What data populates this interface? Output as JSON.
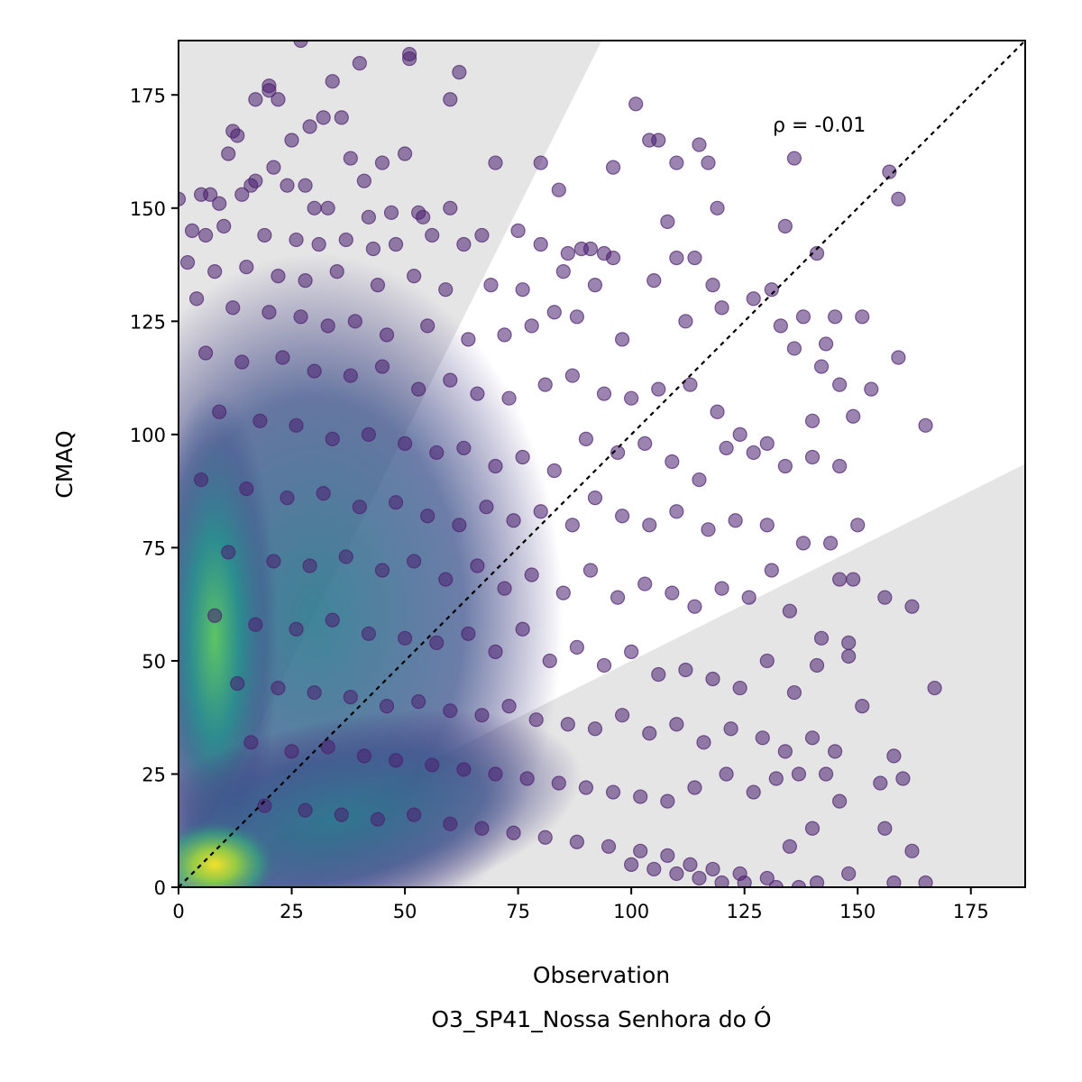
{
  "chart_data": {
    "type": "scatter",
    "xlabel": "Observation",
    "subtitle": "O3_SP41_Nossa Senhora do Ó",
    "ylabel": "CMAQ",
    "xlim": [
      0,
      187
    ],
    "ylim": [
      0,
      187
    ],
    "xticks": [
      0,
      25,
      50,
      75,
      100,
      125,
      150,
      175
    ],
    "yticks": [
      0,
      25,
      50,
      75,
      100,
      125,
      150,
      175
    ],
    "xtick_labels": [
      "0",
      "25",
      "50",
      "75",
      "100",
      "125",
      "150",
      "175"
    ],
    "ytick_labels": [
      "0",
      "25",
      "50",
      "75",
      "100",
      "125",
      "150",
      "175"
    ],
    "annotation": "ρ = -0.01",
    "reference_line": "y = x",
    "shaded_regions": "outside factor-of-2 band (y > 2x and y < x/2)",
    "point_color": "#4b1f6f",
    "density_colormap": [
      "#440154",
      "#3b528b",
      "#21918c",
      "#5ec962",
      "#fde725"
    ],
    "grid": false,
    "legend": "none",
    "points": [
      [
        27,
        187
      ],
      [
        40,
        182
      ],
      [
        51,
        184
      ],
      [
        51,
        183
      ],
      [
        62,
        180
      ],
      [
        34,
        178
      ],
      [
        20,
        177
      ],
      [
        20,
        176
      ],
      [
        22,
        174
      ],
      [
        17,
        174
      ],
      [
        60,
        174
      ],
      [
        101,
        173
      ],
      [
        32,
        170
      ],
      [
        36,
        170
      ],
      [
        12,
        167
      ],
      [
        13,
        166
      ],
      [
        29,
        168
      ],
      [
        25,
        165
      ],
      [
        104,
        165
      ],
      [
        106,
        165
      ],
      [
        115,
        164
      ],
      [
        11,
        162
      ],
      [
        50,
        162
      ],
      [
        45,
        160
      ],
      [
        38,
        161
      ],
      [
        21,
        159
      ],
      [
        70,
        160
      ],
      [
        80,
        160
      ],
      [
        110,
        160
      ],
      [
        117,
        160
      ],
      [
        136,
        161
      ],
      [
        96,
        159
      ],
      [
        157,
        158
      ],
      [
        159,
        152
      ],
      [
        17,
        156
      ],
      [
        16,
        155
      ],
      [
        41,
        156
      ],
      [
        24,
        155
      ],
      [
        28,
        155
      ],
      [
        84,
        154
      ],
      [
        0,
        152
      ],
      [
        5,
        153
      ],
      [
        7,
        153
      ],
      [
        9,
        151
      ],
      [
        14,
        153
      ],
      [
        30,
        150
      ],
      [
        33,
        150
      ],
      [
        42,
        148
      ],
      [
        47,
        149
      ],
      [
        53,
        149
      ],
      [
        60,
        150
      ],
      [
        54,
        148
      ],
      [
        119,
        150
      ],
      [
        108,
        147
      ],
      [
        134,
        146
      ],
      [
        3,
        145
      ],
      [
        6,
        144
      ],
      [
        10,
        146
      ],
      [
        19,
        144
      ],
      [
        26,
        143
      ],
      [
        31,
        142
      ],
      [
        37,
        143
      ],
      [
        43,
        141
      ],
      [
        48,
        142
      ],
      [
        56,
        144
      ],
      [
        63,
        142
      ],
      [
        67,
        144
      ],
      [
        75,
        145
      ],
      [
        80,
        142
      ],
      [
        86,
        140
      ],
      [
        89,
        141
      ],
      [
        91,
        141
      ],
      [
        94,
        140
      ],
      [
        96,
        139
      ],
      [
        110,
        139
      ],
      [
        114,
        139
      ],
      [
        141,
        140
      ],
      [
        145,
        126
      ],
      [
        2,
        138
      ],
      [
        8,
        136
      ],
      [
        15,
        137
      ],
      [
        22,
        135
      ],
      [
        28,
        134
      ],
      [
        35,
        136
      ],
      [
        44,
        133
      ],
      [
        52,
        135
      ],
      [
        59,
        132
      ],
      [
        69,
        133
      ],
      [
        76,
        132
      ],
      [
        85,
        136
      ],
      [
        92,
        133
      ],
      [
        105,
        134
      ],
      [
        118,
        133
      ],
      [
        131,
        132
      ],
      [
        138,
        126
      ],
      [
        143,
        120
      ],
      [
        151,
        126
      ],
      [
        159,
        117
      ],
      [
        4,
        130
      ],
      [
        12,
        128
      ],
      [
        20,
        127
      ],
      [
        27,
        126
      ],
      [
        33,
        124
      ],
      [
        39,
        125
      ],
      [
        46,
        122
      ],
      [
        55,
        124
      ],
      [
        64,
        121
      ],
      [
        72,
        122
      ],
      [
        78,
        124
      ],
      [
        83,
        127
      ],
      [
        88,
        126
      ],
      [
        98,
        121
      ],
      [
        112,
        125
      ],
      [
        120,
        128
      ],
      [
        127,
        130
      ],
      [
        133,
        124
      ],
      [
        136,
        119
      ],
      [
        142,
        115
      ],
      [
        146,
        111
      ],
      [
        6,
        118
      ],
      [
        14,
        116
      ],
      [
        23,
        117
      ],
      [
        30,
        114
      ],
      [
        38,
        113
      ],
      [
        45,
        115
      ],
      [
        53,
        110
      ],
      [
        60,
        112
      ],
      [
        66,
        109
      ],
      [
        73,
        108
      ],
      [
        81,
        111
      ],
      [
        87,
        113
      ],
      [
        94,
        109
      ],
      [
        100,
        108
      ],
      [
        106,
        110
      ],
      [
        113,
        111
      ],
      [
        119,
        105
      ],
      [
        124,
        100
      ],
      [
        130,
        98
      ],
      [
        140,
        103
      ],
      [
        149,
        104
      ],
      [
        153,
        110
      ],
      [
        9,
        105
      ],
      [
        18,
        103
      ],
      [
        26,
        102
      ],
      [
        34,
        99
      ],
      [
        42,
        100
      ],
      [
        50,
        98
      ],
      [
        57,
        96
      ],
      [
        63,
        97
      ],
      [
        70,
        93
      ],
      [
        76,
        95
      ],
      [
        83,
        92
      ],
      [
        90,
        99
      ],
      [
        97,
        96
      ],
      [
        103,
        98
      ],
      [
        109,
        94
      ],
      [
        115,
        90
      ],
      [
        121,
        97
      ],
      [
        127,
        96
      ],
      [
        134,
        93
      ],
      [
        140,
        95
      ],
      [
        146,
        93
      ],
      [
        150,
        80
      ],
      [
        165,
        102
      ],
      [
        5,
        90
      ],
      [
        15,
        88
      ],
      [
        24,
        86
      ],
      [
        32,
        87
      ],
      [
        40,
        84
      ],
      [
        48,
        85
      ],
      [
        55,
        82
      ],
      [
        62,
        80
      ],
      [
        68,
        84
      ],
      [
        74,
        81
      ],
      [
        80,
        83
      ],
      [
        87,
        80
      ],
      [
        92,
        86
      ],
      [
        98,
        82
      ],
      [
        104,
        80
      ],
      [
        110,
        83
      ],
      [
        117,
        79
      ],
      [
        123,
        81
      ],
      [
        130,
        80
      ],
      [
        138,
        76
      ],
      [
        144,
        76
      ],
      [
        146,
        68
      ],
      [
        149,
        68
      ],
      [
        11,
        74
      ],
      [
        21,
        72
      ],
      [
        29,
        71
      ],
      [
        37,
        73
      ],
      [
        45,
        70
      ],
      [
        52,
        72
      ],
      [
        59,
        68
      ],
      [
        66,
        71
      ],
      [
        72,
        66
      ],
      [
        78,
        69
      ],
      [
        85,
        65
      ],
      [
        91,
        70
      ],
      [
        97,
        64
      ],
      [
        103,
        67
      ],
      [
        109,
        65
      ],
      [
        114,
        62
      ],
      [
        120,
        66
      ],
      [
        126,
        64
      ],
      [
        131,
        70
      ],
      [
        135,
        61
      ],
      [
        142,
        55
      ],
      [
        148,
        54
      ],
      [
        156,
        64
      ],
      [
        162,
        62
      ],
      [
        8,
        60
      ],
      [
        17,
        58
      ],
      [
        26,
        57
      ],
      [
        34,
        59
      ],
      [
        42,
        56
      ],
      [
        50,
        55
      ],
      [
        57,
        54
      ],
      [
        64,
        56
      ],
      [
        70,
        52
      ],
      [
        76,
        57
      ],
      [
        82,
        50
      ],
      [
        88,
        53
      ],
      [
        94,
        49
      ],
      [
        100,
        52
      ],
      [
        106,
        47
      ],
      [
        112,
        48
      ],
      [
        118,
        46
      ],
      [
        124,
        44
      ],
      [
        130,
        50
      ],
      [
        136,
        43
      ],
      [
        141,
        49
      ],
      [
        148,
        51
      ],
      [
        167,
        44
      ],
      [
        13,
        45
      ],
      [
        22,
        44
      ],
      [
        30,
        43
      ],
      [
        38,
        42
      ],
      [
        46,
        40
      ],
      [
        53,
        41
      ],
      [
        60,
        39
      ],
      [
        67,
        38
      ],
      [
        73,
        40
      ],
      [
        79,
        37
      ],
      [
        86,
        36
      ],
      [
        92,
        35
      ],
      [
        98,
        38
      ],
      [
        104,
        34
      ],
      [
        110,
        36
      ],
      [
        116,
        32
      ],
      [
        122,
        35
      ],
      [
        129,
        33
      ],
      [
        134,
        30
      ],
      [
        140,
        33
      ],
      [
        145,
        30
      ],
      [
        151,
        40
      ],
      [
        158,
        29
      ],
      [
        16,
        32
      ],
      [
        25,
        30
      ],
      [
        33,
        31
      ],
      [
        41,
        29
      ],
      [
        48,
        28
      ],
      [
        56,
        27
      ],
      [
        63,
        26
      ],
      [
        70,
        25
      ],
      [
        77,
        24
      ],
      [
        84,
        23
      ],
      [
        90,
        22
      ],
      [
        96,
        21
      ],
      [
        102,
        20
      ],
      [
        108,
        19
      ],
      [
        114,
        22
      ],
      [
        121,
        25
      ],
      [
        127,
        21
      ],
      [
        132,
        24
      ],
      [
        137,
        25
      ],
      [
        143,
        25
      ],
      [
        146,
        19
      ],
      [
        155,
        23
      ],
      [
        160,
        24
      ],
      [
        19,
        18
      ],
      [
        28,
        17
      ],
      [
        36,
        16
      ],
      [
        44,
        15
      ],
      [
        52,
        16
      ],
      [
        60,
        14
      ],
      [
        67,
        13
      ],
      [
        74,
        12
      ],
      [
        81,
        11
      ],
      [
        88,
        10
      ],
      [
        95,
        9
      ],
      [
        102,
        8
      ],
      [
        108,
        7
      ],
      [
        113,
        5
      ],
      [
        118,
        4
      ],
      [
        124,
        3
      ],
      [
        130,
        2
      ],
      [
        135,
        9
      ],
      [
        140,
        13
      ],
      [
        148,
        3
      ],
      [
        156,
        13
      ],
      [
        162,
        8
      ],
      [
        165,
        1
      ],
      [
        158,
        1
      ],
      [
        100,
        5
      ],
      [
        105,
        4
      ],
      [
        110,
        3
      ],
      [
        115,
        2
      ],
      [
        120,
        1
      ],
      [
        125,
        1
      ],
      [
        132,
        0
      ],
      [
        137,
        0
      ],
      [
        141,
        1
      ]
    ]
  }
}
